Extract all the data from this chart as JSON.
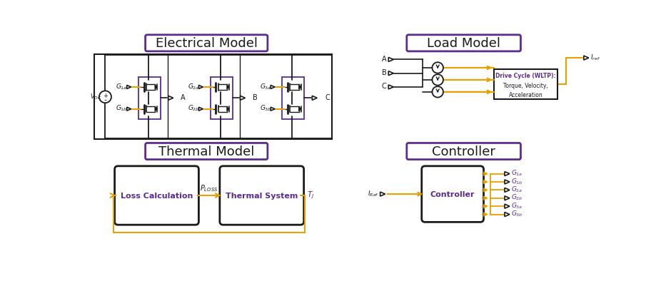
{
  "title_electrical": "Electrical Model",
  "title_load": "Load Model",
  "title_thermal": "Thermal Model",
  "title_controller": "Controller",
  "purple": "#5B2D8E",
  "orange": "#E8A000",
  "black": "#1a1a1a",
  "white": "#ffffff",
  "figw": 9.19,
  "figh": 4.02,
  "dpi": 100
}
